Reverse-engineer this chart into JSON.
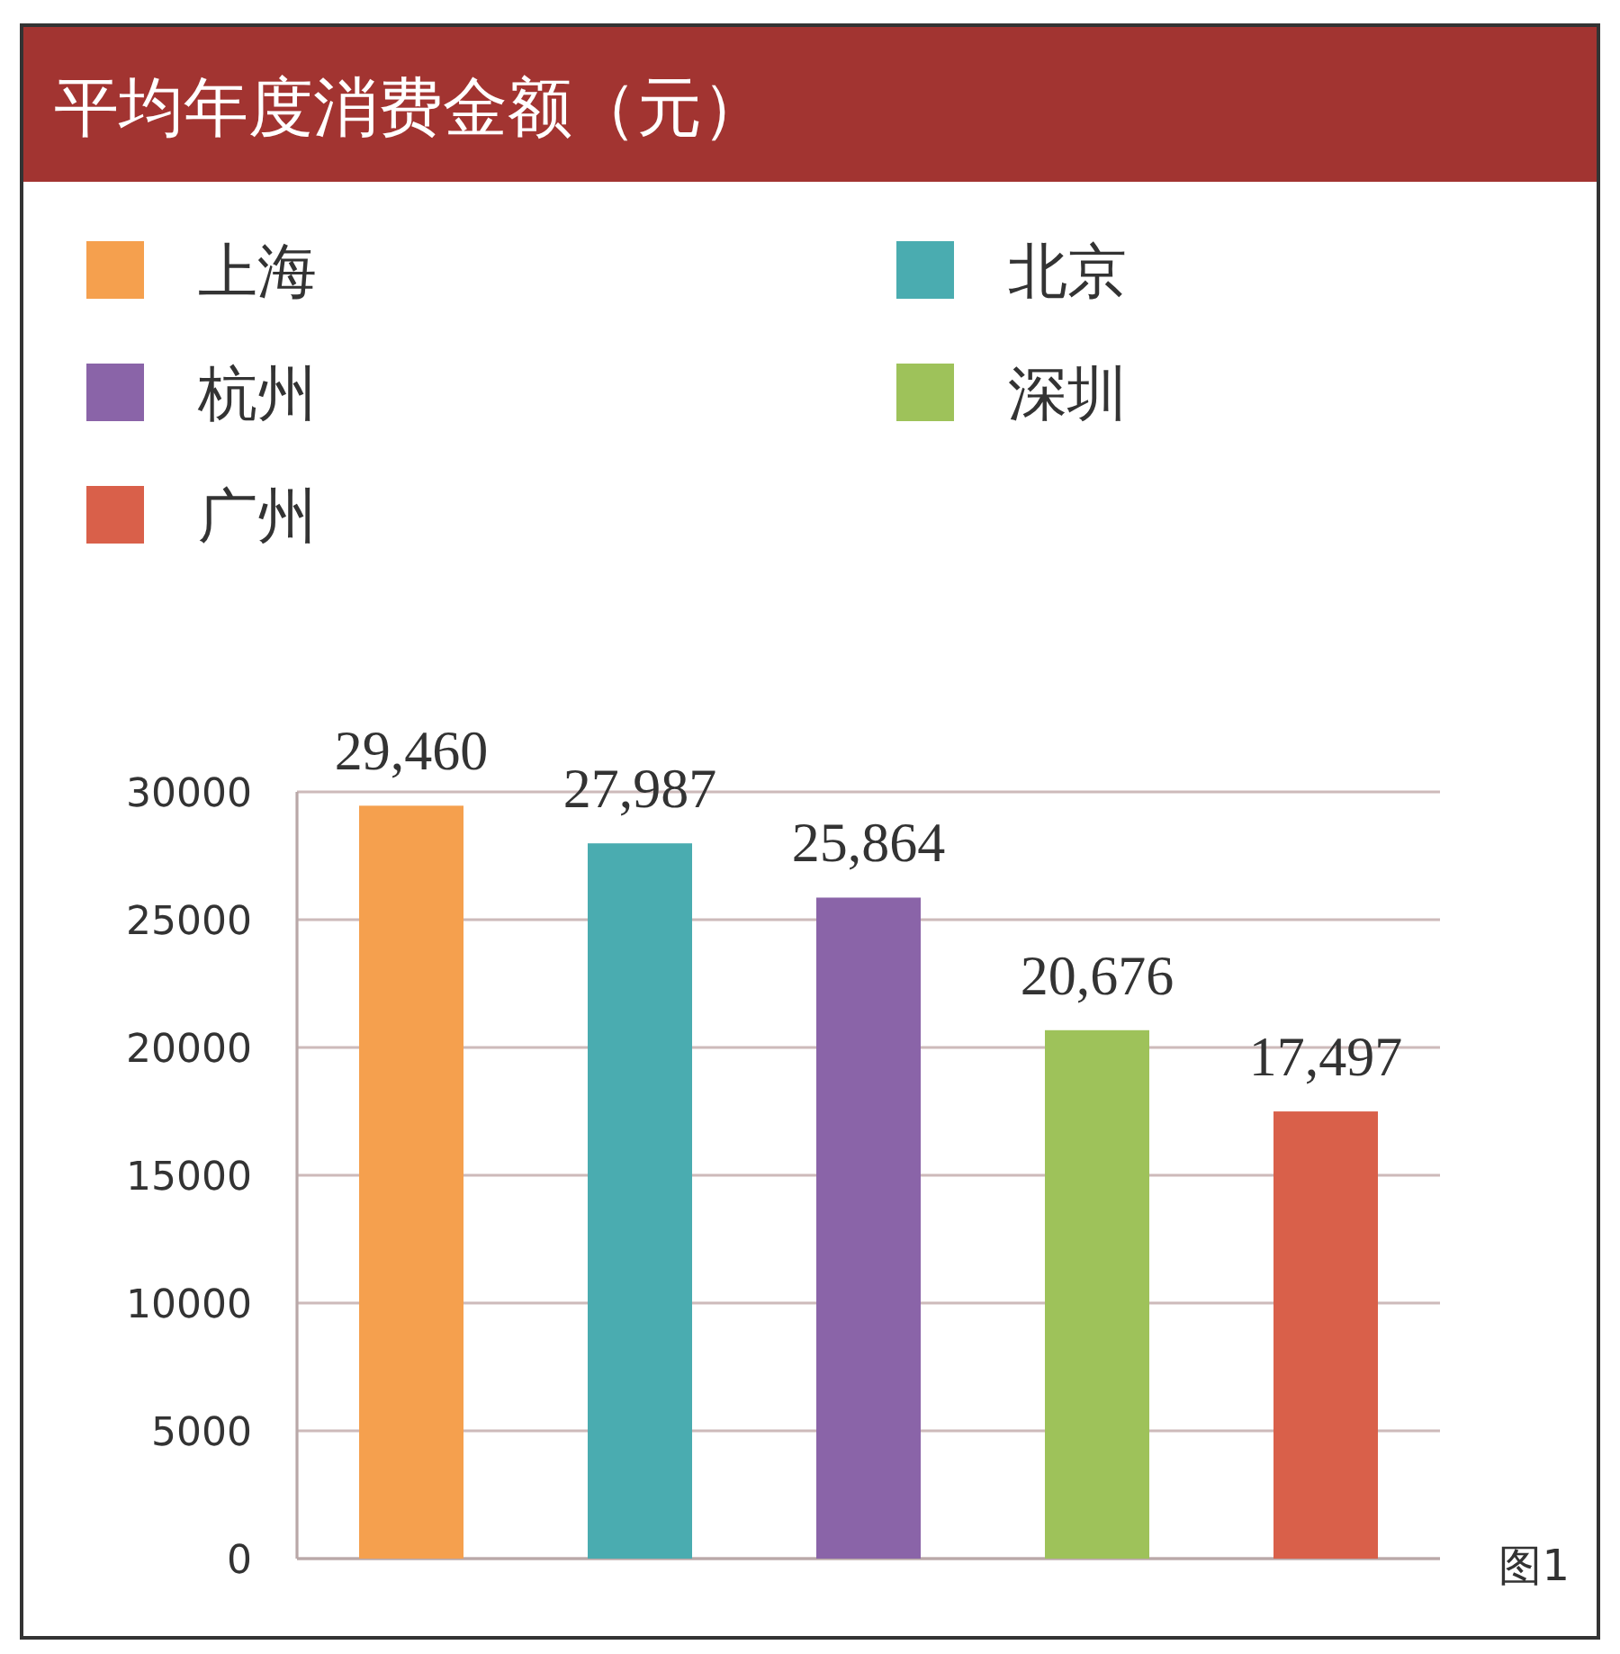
{
  "chart_data": {
    "type": "bar",
    "title": "平均年度消费金额（元）",
    "categories": [
      null,
      null,
      null,
      null,
      null
    ],
    "series": [
      {
        "name": "上海",
        "color": "#f5a04e",
        "values": [
          29460,
          null,
          null,
          null,
          null
        ],
        "value_labels": [
          "29,460",
          null,
          null,
          null,
          null
        ]
      },
      {
        "name": "北京",
        "color": "#4aacb0",
        "values": [
          null,
          27987,
          null,
          null,
          null
        ],
        "value_labels": [
          null,
          "27,987",
          null,
          null,
          null
        ]
      },
      {
        "name": "杭州",
        "color": "#8a64a8",
        "values": [
          null,
          null,
          25864,
          null,
          null
        ],
        "value_labels": [
          null,
          null,
          "25,864",
          null,
          null
        ]
      },
      {
        "name": "深圳",
        "color": "#9ec25a",
        "values": [
          null,
          null,
          null,
          20676,
          null
        ],
        "value_labels": [
          null,
          null,
          null,
          "20,676",
          null
        ]
      },
      {
        "name": "广州",
        "color": "#d9604a",
        "values": [
          null,
          null,
          null,
          null,
          17497
        ],
        "value_labels": [
          null,
          null,
          null,
          null,
          "17,497"
        ]
      }
    ],
    "ylim": [
      0,
      30000
    ],
    "yticks": [
      0,
      5000,
      10000,
      15000,
      20000,
      25000,
      30000
    ],
    "grid": "y",
    "legend": "top",
    "annotations": [
      "图1"
    ]
  }
}
